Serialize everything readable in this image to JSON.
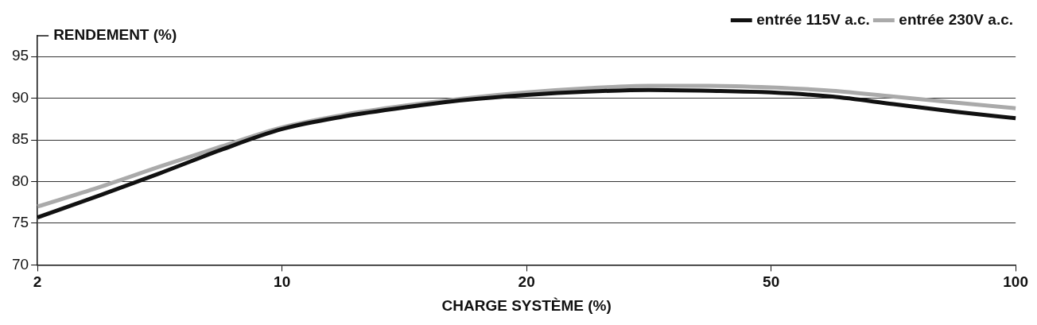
{
  "chart_data": {
    "type": "line",
    "ylabel": "RENDEMENT (%)",
    "xlabel": "CHARGE SYSTÈME (%)",
    "categories": [
      "2",
      null,
      null,
      null,
      "10",
      null,
      null,
      null,
      "20",
      null,
      null,
      null,
      "50",
      null,
      null,
      null,
      "100"
    ],
    "series": [
      {
        "name": "entrée 115V a.c.",
        "color": "#111111",
        "values": [
          75.7,
          78.3,
          81.0,
          83.8,
          86.3,
          87.8,
          88.9,
          89.8,
          90.4,
          90.8,
          91.0,
          90.9,
          90.7,
          90.2,
          89.3,
          88.4,
          87.6
        ]
      },
      {
        "name": "entrée 230V a.c.",
        "color": "#aaaaaa",
        "values": [
          77.0,
          79.3,
          81.8,
          84.2,
          86.5,
          88.0,
          89.1,
          90.0,
          90.7,
          91.2,
          91.5,
          91.5,
          91.3,
          90.9,
          90.2,
          89.5,
          88.8
        ]
      }
    ],
    "ylim": [
      70,
      97.5
    ],
    "yticks": [
      70,
      75,
      80,
      85,
      90,
      95
    ],
    "grid": "y",
    "legend": "top right",
    "marker": "none",
    "line_style": "solid"
  }
}
